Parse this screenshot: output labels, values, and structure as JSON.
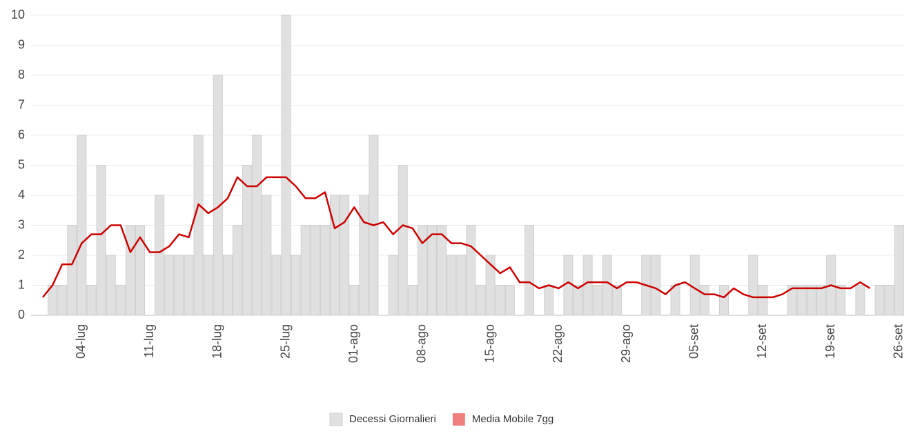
{
  "chart_data": {
    "type": "bar-line",
    "categories": [
      null,
      null,
      null,
      null,
      "04-lug",
      null,
      null,
      null,
      null,
      null,
      null,
      "11-lug",
      null,
      null,
      null,
      null,
      null,
      null,
      "18-lug",
      null,
      null,
      null,
      null,
      null,
      null,
      "25-lug",
      null,
      null,
      null,
      null,
      null,
      null,
      "01-ago",
      null,
      null,
      null,
      null,
      null,
      null,
      "08-ago",
      null,
      null,
      null,
      null,
      null,
      null,
      "15-ago",
      null,
      null,
      null,
      null,
      null,
      null,
      "22-ago",
      null,
      null,
      null,
      null,
      null,
      null,
      "29-ago",
      null,
      null,
      null,
      null,
      null,
      null,
      "05-set",
      null,
      null,
      null,
      null,
      null,
      null,
      "12-set",
      null,
      null,
      null,
      null,
      null,
      null,
      "19-set",
      null,
      null,
      null,
      null,
      null,
      null,
      "26-set"
    ],
    "series": [
      {
        "name": "Decessi Giornalieri",
        "type": "bar",
        "color": "#e0e0e0",
        "legend_color": "#e0e0e0",
        "values": [
          null,
          1,
          1,
          3,
          6,
          1,
          5,
          2,
          1,
          3,
          3,
          0,
          4,
          2,
          2,
          2,
          6,
          2,
          8,
          2,
          3,
          5,
          6,
          4,
          2,
          10,
          2,
          3,
          3,
          3,
          4,
          4,
          1,
          4,
          6,
          0,
          2,
          5,
          1,
          3,
          3,
          3,
          2,
          2,
          3,
          1,
          2,
          1,
          1,
          0,
          3,
          0,
          1,
          0,
          2,
          1,
          2,
          1,
          2,
          1,
          0,
          0,
          2,
          2,
          0,
          1,
          0,
          2,
          1,
          0,
          1,
          0,
          0,
          2,
          1,
          0,
          0,
          1,
          1,
          1,
          1,
          2,
          1,
          0,
          1,
          0,
          1,
          1,
          3
        ]
      },
      {
        "name": "Media Mobile 7gg",
        "type": "line",
        "color": "#cc0000",
        "legend_color": "#f08080",
        "values": [
          0.6,
          1.0,
          1.7,
          1.7,
          2.4,
          2.7,
          2.7,
          3.0,
          3.0,
          2.1,
          2.6,
          2.1,
          2.1,
          2.3,
          2.7,
          2.6,
          3.7,
          3.4,
          3.6,
          3.9,
          4.6,
          4.3,
          4.3,
          4.6,
          4.6,
          4.6,
          4.3,
          3.9,
          3.9,
          4.1,
          2.9,
          3.1,
          3.6,
          3.1,
          3.0,
          3.1,
          2.7,
          3.0,
          2.9,
          2.4,
          2.7,
          2.7,
          2.4,
          2.4,
          2.3,
          2.0,
          1.7,
          1.4,
          1.6,
          1.1,
          1.1,
          0.9,
          1.0,
          0.9,
          1.1,
          0.9,
          1.1,
          1.1,
          1.1,
          0.9,
          1.1,
          1.1,
          1.0,
          0.9,
          0.7,
          1.0,
          1.1,
          0.9,
          0.7,
          0.7,
          0.6,
          0.9,
          0.7,
          0.6,
          0.6,
          0.6,
          0.7,
          0.9,
          0.9,
          0.9,
          0.9,
          1.0,
          0.9,
          0.9,
          1.1,
          0.9,
          null,
          null,
          null
        ]
      }
    ],
    "ylim": [
      0,
      10
    ],
    "yticks": [
      0,
      1,
      2,
      3,
      4,
      5,
      6,
      7,
      8,
      9,
      10
    ],
    "grid": true,
    "legend": "bottom"
  }
}
